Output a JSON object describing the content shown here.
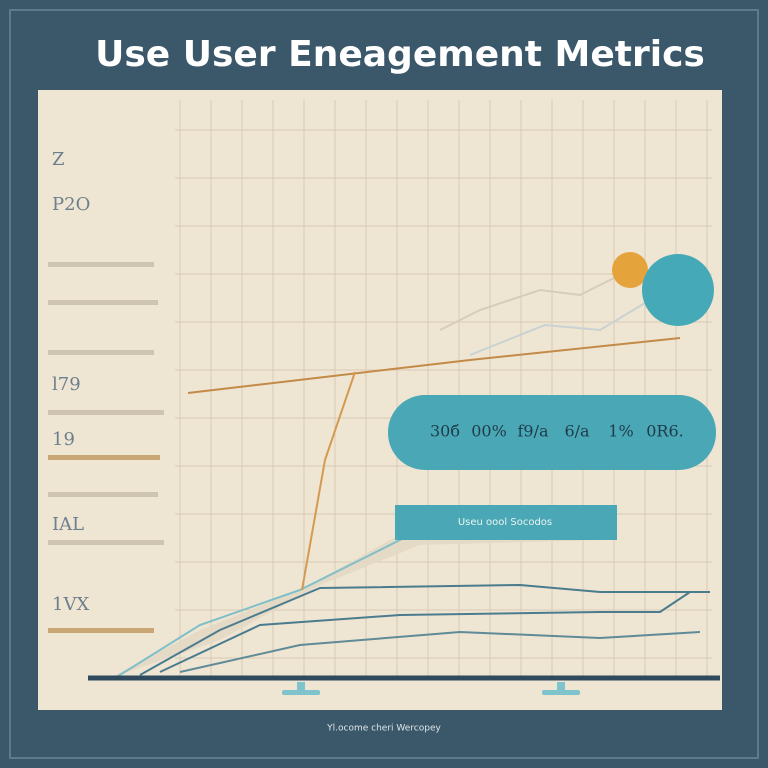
{
  "header": {
    "title": "Use User Eneagement Metrics"
  },
  "side_labels": [
    "Z",
    "P2O",
    "l79",
    "19",
    "IAL",
    "1VX"
  ],
  "pill": {
    "items": [
      "30б",
      "00%",
      "f9/a",
      "6/a",
      "1%",
      "0R6."
    ]
  },
  "banner": {
    "label": "Useu oool Socodos"
  },
  "footer": {
    "caption": "Yl.ocome cheri Wercopey"
  }
}
